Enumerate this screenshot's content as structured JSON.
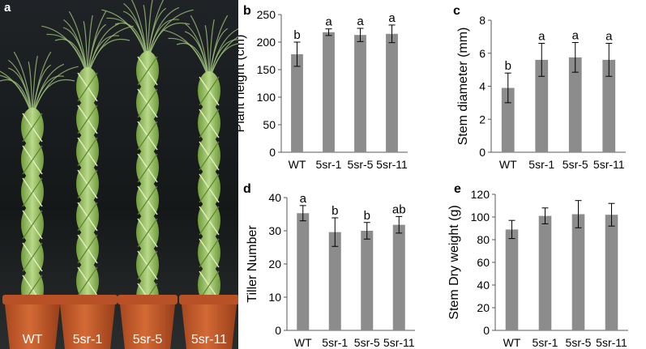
{
  "photo": {
    "panel_letter": "a",
    "pot_labels": [
      "WT",
      "5sr-1",
      "5sr-5",
      "5sr-11"
    ]
  },
  "colors": {
    "bar": "#8c8c8c",
    "axis": "#595959",
    "text": "#000000"
  },
  "chart_data": [
    {
      "panel": "b",
      "type": "bar",
      "categories": [
        "WT",
        "5sr-1",
        "5sr-5",
        "5sr-11"
      ],
      "values": [
        178,
        218,
        213,
        215
      ],
      "errors": [
        22,
        6,
        12,
        16
      ],
      "significance": [
        "b",
        "a",
        "a",
        "a"
      ],
      "ylabel": "Plant height (cm)",
      "ylim": [
        0,
        250
      ],
      "yticks": [
        0,
        50,
        100,
        150,
        200,
        250
      ],
      "grid": false
    },
    {
      "panel": "c",
      "type": "bar",
      "categories": [
        "WT",
        "5sr-1",
        "5sr-5",
        "5sr-11"
      ],
      "values": [
        3.9,
        5.6,
        5.75,
        5.6
      ],
      "errors": [
        0.9,
        1.0,
        0.9,
        1.0
      ],
      "significance": [
        "b",
        "a",
        "a",
        "a"
      ],
      "ylabel": "Stem diameter (mm)",
      "ylim": [
        0,
        8
      ],
      "yticks": [
        0,
        2,
        4,
        6,
        8
      ],
      "grid": false
    },
    {
      "panel": "d",
      "type": "bar",
      "categories": [
        "WT",
        "5sr-1",
        "5sr-5",
        "5sr-11"
      ],
      "values": [
        35.3,
        29.6,
        30.0,
        31.8
      ],
      "errors": [
        2.3,
        4.3,
        2.5,
        2.5
      ],
      "significance": [
        "a",
        "b",
        "b",
        "ab"
      ],
      "ylabel": "Tiller Number",
      "ylim": [
        0,
        40
      ],
      "yticks": [
        0,
        10,
        20,
        30,
        40
      ],
      "grid": false
    },
    {
      "panel": "e",
      "type": "bar",
      "categories": [
        "WT",
        "5sr-1",
        "5sr-5",
        "5sr-11"
      ],
      "values": [
        89,
        101,
        102.5,
        102
      ],
      "errors": [
        8,
        7,
        12,
        10
      ],
      "significance": [],
      "ylabel": "Stem Dry weight (g)",
      "ylim": [
        0,
        120
      ],
      "yticks": [
        0,
        20,
        40,
        60,
        80,
        100,
        120
      ],
      "grid": false
    }
  ]
}
